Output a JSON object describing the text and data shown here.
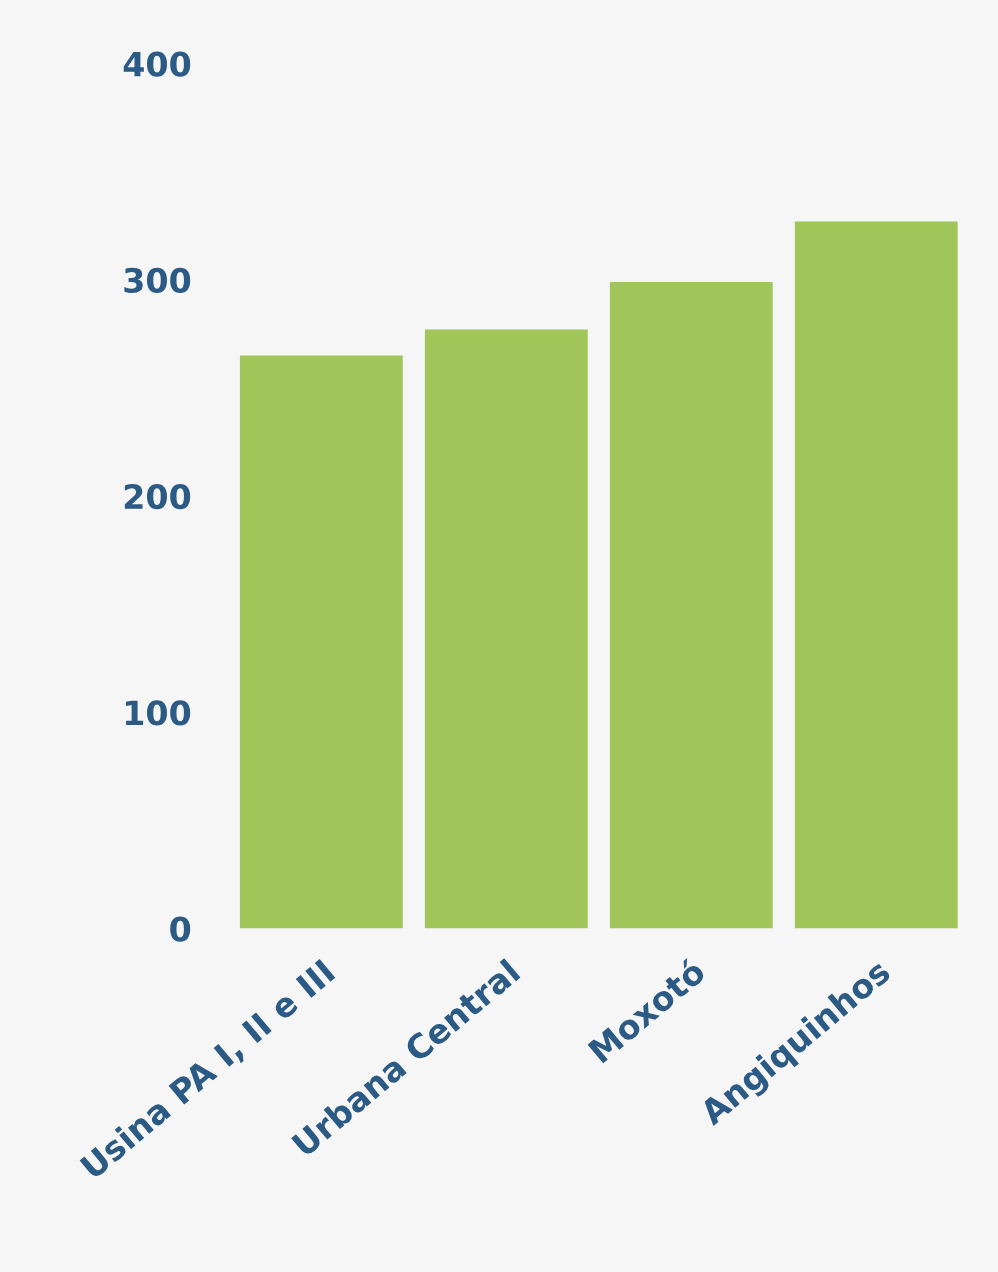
{
  "chart_data": {
    "type": "bar",
    "categories": [
      "Usina PA I, II e III",
      "Urbana Central",
      "Moxotó",
      "Angiquinhos"
    ],
    "values": [
      265,
      277,
      299,
      327
    ],
    "color": "#a0c659",
    "ylim": [
      0,
      400
    ],
    "yticks": [
      0,
      100,
      200,
      300,
      400
    ],
    "grid": false
  }
}
